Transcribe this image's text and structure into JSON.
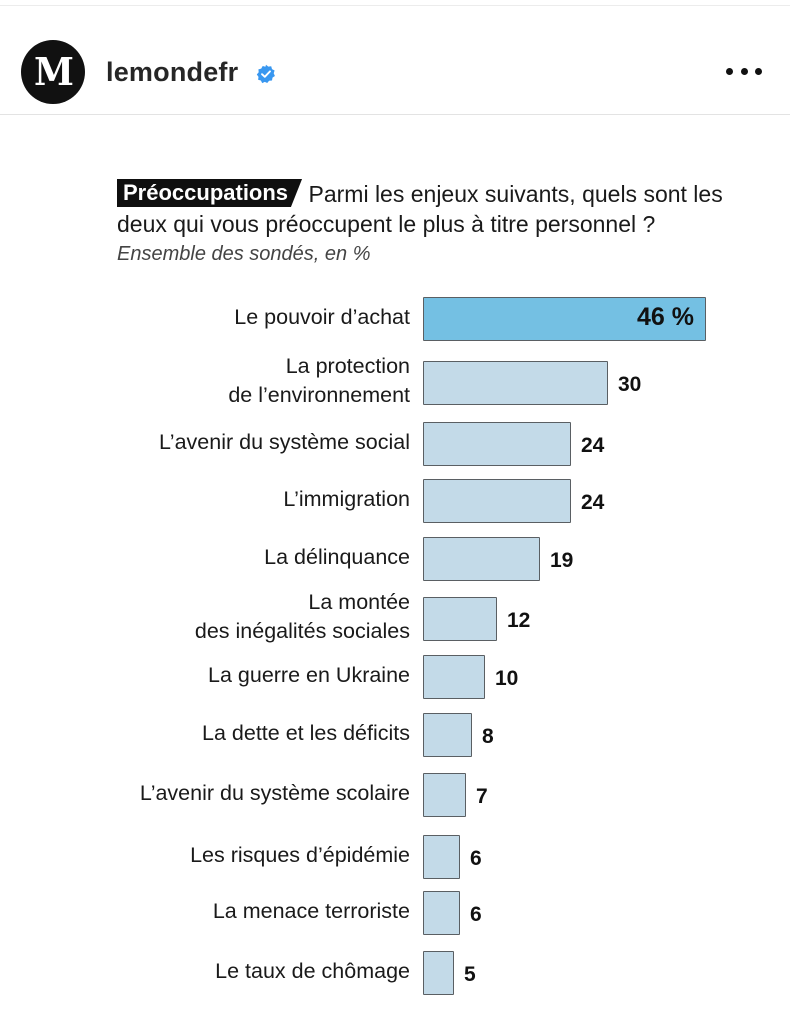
{
  "post": {
    "username": "lemondefr",
    "avatar_letter": "M",
    "verified": true,
    "icons": {
      "verified": "verified-badge-icon",
      "more": "more-options-icon"
    }
  },
  "colors": {
    "highlight_bar": "#74c0e3",
    "bar": "#c3dae8",
    "verified": "#3897f0"
  },
  "chart_data": {
    "type": "bar",
    "orientation": "horizontal",
    "tag": "Préoccupations",
    "title": "Parmi les enjeux suivants, quels sont les deux qui vous préoccupent le plus à titre personnel ?",
    "subtitle": "Ensemble des sondés, en %",
    "unit": "%",
    "categories": [
      [
        "Le pouvoir d’achat"
      ],
      [
        "La protection",
        "de l’environnement"
      ],
      [
        "L’avenir du système social"
      ],
      [
        "L’immigration"
      ],
      [
        "La délinquance"
      ],
      [
        "La montée",
        "des inégalités sociales"
      ],
      [
        "La guerre en Ukraine"
      ],
      [
        "La dette et les déficits"
      ],
      [
        "L’avenir du système scolaire"
      ],
      [
        "Les risques d’épidémie"
      ],
      [
        "La menace terroriste"
      ],
      [
        "Le taux de chômage"
      ]
    ],
    "values": [
      46,
      30,
      24,
      24,
      19,
      12,
      10,
      8,
      7,
      6,
      6,
      5
    ],
    "value_labels": [
      "46 %",
      "30",
      "24",
      "24",
      "19",
      "12",
      "10",
      "8",
      "7",
      "6",
      "6",
      "5"
    ],
    "highlighted_index": 0,
    "xlim": [
      0,
      46
    ],
    "grid": false,
    "legend": "none"
  }
}
